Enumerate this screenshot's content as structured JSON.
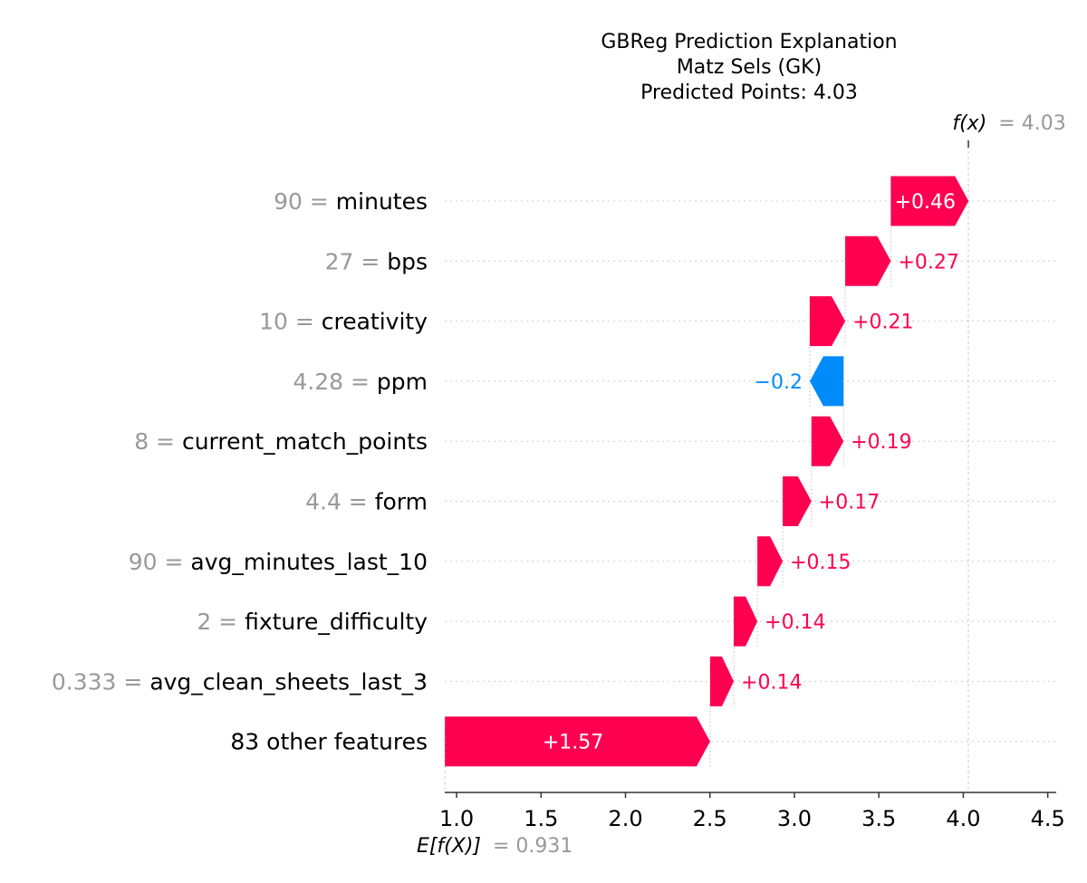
{
  "chart_data": {
    "type": "waterfall",
    "title_lines": [
      "GBReg Prediction Explanation",
      "Matz Sels (GK)",
      "Predicted Points: 4.03"
    ],
    "base_value": 0.931,
    "base_value_text": "= 0.931",
    "base_label": "E[f(X)]",
    "fx_value": 4.03,
    "fx_value_text": "= 4.03",
    "fx_label": "f(x)",
    "xlim": [
      0.93,
      4.55
    ],
    "x_ticks": [
      1.0,
      1.5,
      2.0,
      2.5,
      3.0,
      3.5,
      4.0,
      4.5
    ],
    "x_tick_labels": [
      "1.0",
      "1.5",
      "2.0",
      "2.5",
      "3.0",
      "3.5",
      "4.0",
      "4.5"
    ],
    "features": [
      {
        "value": "90",
        "name": "minutes",
        "contribution": 0.46,
        "label": "+0.46"
      },
      {
        "value": "27",
        "name": "bps",
        "contribution": 0.27,
        "label": "+0.27"
      },
      {
        "value": "10",
        "name": "creativity",
        "contribution": 0.21,
        "label": "+0.21"
      },
      {
        "value": "4.28",
        "name": "ppm",
        "contribution": -0.2,
        "label": "−0.2"
      },
      {
        "value": "8",
        "name": "current_match_points",
        "contribution": 0.19,
        "label": "+0.19"
      },
      {
        "value": "4.4",
        "name": "form",
        "contribution": 0.17,
        "label": "+0.17"
      },
      {
        "value": "90",
        "name": "avg_minutes_last_10",
        "contribution": 0.15,
        "label": "+0.15"
      },
      {
        "value": "2",
        "name": "fixture_difficulty",
        "contribution": 0.14,
        "label": "+0.14"
      },
      {
        "value": "0.333",
        "name": "avg_clean_sheets_last_3",
        "contribution": 0.14,
        "label": "+0.14"
      },
      {
        "value": "",
        "name": "83 other features",
        "contribution": 1.57,
        "label": "+1.57"
      }
    ],
    "colors": {
      "positive": "#ff0051",
      "negative": "#008bfb",
      "inside_text": "#ffffff",
      "muted": "#999999",
      "gridline": "#cccccc"
    }
  }
}
